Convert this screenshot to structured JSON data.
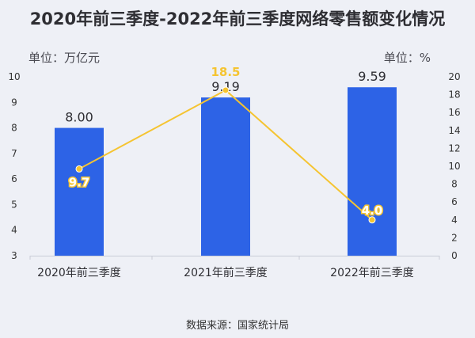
{
  "title": "2020年前三季度-2022年前三季度网络零售额变化情况",
  "unit_left": "单位：万亿元",
  "unit_right": "单位：%",
  "source": "数据来源：国家统计局",
  "colors": {
    "bar": "#2d63e6",
    "line": "#f5c431",
    "background": "#eef0f6"
  },
  "chart_data": {
    "type": "bar",
    "categories": [
      "2020年前三季度",
      "2021年前三季度",
      "2022年前三季度"
    ],
    "series": [
      {
        "values": [
          8.0,
          9.19,
          9.59
        ],
        "value_labels": [
          "8.00",
          "9.19",
          "9.59"
        ],
        "axis": "left",
        "type": "bar"
      },
      {
        "values": [
          9.7,
          18.5,
          4.0
        ],
        "value_labels": [
          "9.7",
          "18.5",
          "4.0"
        ],
        "axis": "right",
        "type": "line"
      }
    ],
    "y_left": {
      "range": [
        3,
        10
      ],
      "ticks": [
        3,
        4,
        5,
        6,
        7,
        8,
        9,
        10
      ]
    },
    "y_right": {
      "range": [
        0,
        20
      ],
      "ticks": [
        0,
        2,
        4,
        6,
        8,
        10,
        12,
        14,
        16,
        18,
        20
      ]
    },
    "grid": false,
    "legend": "none"
  }
}
